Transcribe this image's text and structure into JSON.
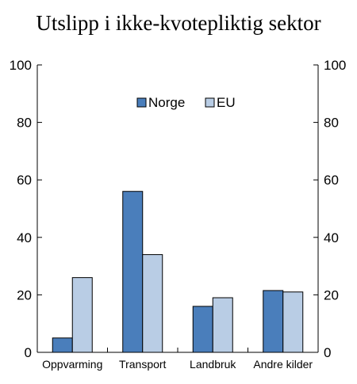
{
  "chart_data": {
    "type": "bar",
    "title": "Utslipp i ikke-kvotepliktig sektor",
    "categories": [
      "Oppvarming",
      "Transport",
      "Landbruk",
      "Andre kilder"
    ],
    "series": [
      {
        "name": "Norge",
        "values": [
          5,
          56,
          16,
          21.5
        ],
        "color": "#4a7ebb"
      },
      {
        "name": "EU",
        "values": [
          26,
          34,
          19,
          21
        ],
        "color": "#b9cde5"
      }
    ],
    "ylim": [
      0,
      100
    ],
    "yticks": [
      0,
      20,
      40,
      60,
      80,
      100
    ],
    "right_axis": true,
    "grid": false,
    "legend": "top-center"
  }
}
